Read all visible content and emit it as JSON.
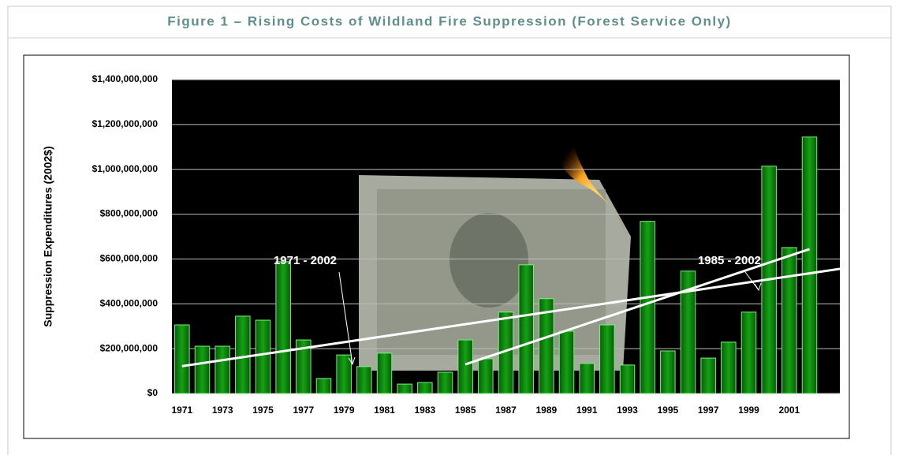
{
  "chart_data": {
    "type": "bar",
    "title": "Figure 1 – Rising Costs of Wildland Fire Suppression (Forest Service Only)",
    "y_label": "Suppression Expenditures (2002$)",
    "categories": [
      "1971",
      null,
      "1973",
      null,
      "1975",
      null,
      "1977",
      null,
      "1979",
      null,
      "1981",
      null,
      "1983",
      null,
      "1985",
      null,
      "1987",
      null,
      "1989",
      null,
      "1991",
      null,
      "1993",
      null,
      "1995",
      null,
      "1997",
      null,
      "1999",
      null,
      "2001",
      null
    ],
    "values": [
      306000000,
      211000000,
      211000000,
      345000000,
      327000000,
      588000000,
      239000000,
      67000000,
      172000000,
      120000000,
      180000000,
      42000000,
      49000000,
      95000000,
      239000000,
      155000000,
      363000000,
      574000000,
      423000000,
      278000000,
      134000000,
      306000000,
      127000000,
      768000000,
      190000000,
      546000000,
      158000000,
      229000000,
      363000000,
      1014000000,
      651000000,
      1144000000
    ],
    "color": "#0c8c0c",
    "ylim": [
      0,
      1400000000
    ],
    "yticks": [
      {
        "value": 0,
        "label": "$0"
      },
      {
        "value": 200000000,
        "label": "$200,000,000"
      },
      {
        "value": 400000000,
        "label": "$400,000,000"
      },
      {
        "value": 600000000,
        "label": "$600,000,000"
      },
      {
        "value": 800000000,
        "label": "$800,000,000"
      },
      {
        "value": 1000000000,
        "label": "$1,000,000,000"
      },
      {
        "value": 1200000000,
        "label": "$1,200,000,000"
      },
      {
        "value": 1400000000,
        "label": "$1,400,000,000"
      }
    ],
    "grid": true,
    "annotations": [
      {
        "text": "1971 - 2002",
        "trend": [
          122000000,
          556000000
        ]
      },
      {
        "text": "1985 - 2002",
        "trend": [
          130000000,
          644000000
        ]
      }
    ]
  }
}
